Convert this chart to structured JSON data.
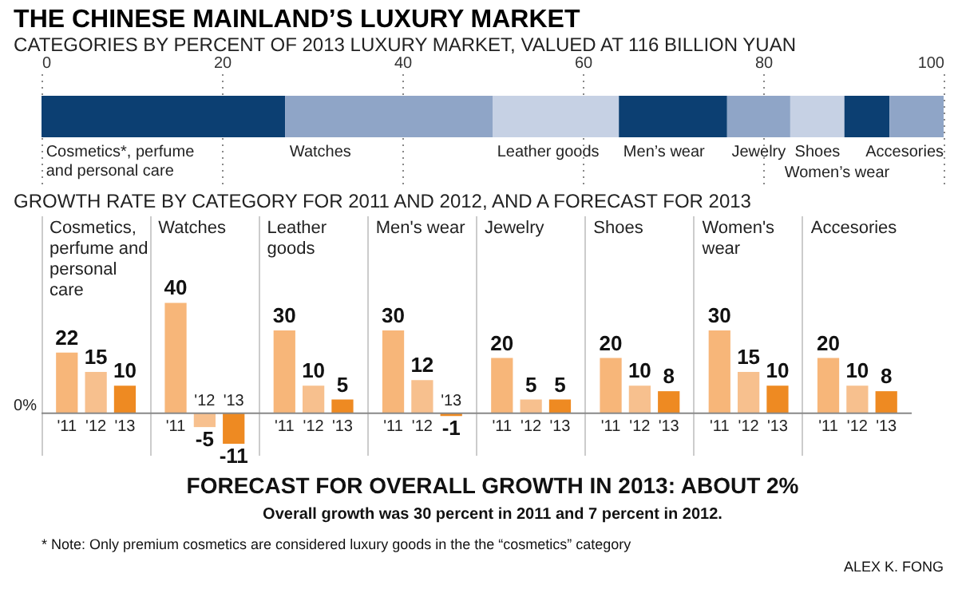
{
  "chart_data": [
    {
      "type": "bar",
      "orientation": "horizontal",
      "stacked": true,
      "title": "THE CHINESE MAINLAND’S LUXURY MARKET",
      "subtitle": "CATEGORIES BY PERCENT OF 2013 LUXURY MARKET, VALUED AT 116 BILLION YUAN",
      "categories": [
        null
      ],
      "series": [
        {
          "name": "Cosmetics*, perfume and personal care",
          "color": "#0c3f72",
          "values": [
            27
          ]
        },
        {
          "name": "Watches",
          "color": "#8fa5c7",
          "values": [
            23
          ]
        },
        {
          "name": "Leather goods",
          "color": "#c6d1e4",
          "values": [
            14
          ]
        },
        {
          "name": "Men’s wear",
          "color": "#0c3f72",
          "values": [
            12
          ]
        },
        {
          "name": "Jewelry",
          "color": "#8fa5c7",
          "values": [
            7
          ]
        },
        {
          "name": "Shoes",
          "color": "#c6d1e4",
          "values": [
            6
          ]
        },
        {
          "name": "Women’s wear",
          "color": "#0c3f72",
          "values": [
            5
          ]
        },
        {
          "name": "Accesories",
          "color": "#8fa5c7",
          "values": [
            6
          ]
        }
      ],
      "xlim": [
        0,
        100
      ],
      "xticks": [
        0,
        20,
        40,
        60,
        80,
        100
      ],
      "grid": "x",
      "legend": false
    },
    {
      "type": "bar",
      "title": "GROWTH RATE BY CATEGORY FOR 2011 AND 2012, AND A FORECAST FOR 2013",
      "categories": [
        "Cosmetics, perfume and personal care",
        "Watches",
        "Leather goods",
        "Men's wear",
        "Jewelry",
        "Shoes",
        "Women's wear",
        "Accesories"
      ],
      "series": [
        {
          "name": "'11",
          "color": "#f7b679",
          "values": [
            22,
            40,
            30,
            30,
            20,
            20,
            30,
            20
          ]
        },
        {
          "name": "'12",
          "color": "#f7c08e",
          "values": [
            15,
            -5,
            10,
            12,
            5,
            10,
            15,
            10
          ]
        },
        {
          "name": "'13",
          "color": "#ee8a22",
          "values": [
            10,
            -11,
            5,
            -1,
            5,
            8,
            10,
            8
          ]
        }
      ],
      "data_labels": true,
      "grid": "x",
      "legend": false,
      "annotations": [
        "0%",
        "FORECAST FOR OVERALL GROWTH IN 2013: ABOUT 2%",
        "Overall growth was 30 percent in 2011 and 7 percent in 2012.",
        "* Note: Only premium cosmetics are considered luxury goods in the the “cosmetics” category",
        "ALEX K. FONG"
      ]
    }
  ]
}
